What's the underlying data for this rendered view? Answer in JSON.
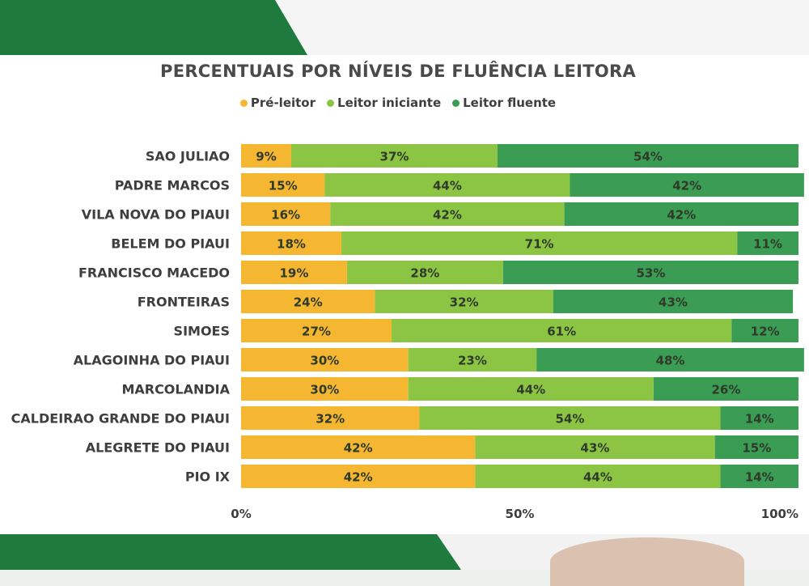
{
  "chart_data": {
    "type": "bar",
    "orientation": "horizontal",
    "stacked": true,
    "title": "PERCENTUAIS POR NÍVEIS DE FLUÊNCIA LEITORA",
    "categories": [
      "SAO JULIAO",
      "PADRE MARCOS",
      "VILA NOVA DO PIAUI",
      "BELEM DO PIAUI",
      "FRANCISCO MACEDO",
      "FRONTEIRAS",
      "SIMOES",
      "ALAGOINHA DO PIAUI",
      "MARCOLANDIA",
      "CALDEIRAO GRANDE DO PIAUI",
      "ALEGRETE DO PIAUI",
      "PIO IX"
    ],
    "series": [
      {
        "name": "Pré-leitor",
        "color": "#f5b731",
        "values": [
          9,
          15,
          16,
          18,
          19,
          24,
          27,
          30,
          30,
          32,
          42,
          42
        ]
      },
      {
        "name": "Leitor iniciante",
        "color": "#8cc544",
        "values": [
          37,
          44,
          42,
          71,
          28,
          32,
          61,
          23,
          44,
          54,
          43,
          44
        ]
      },
      {
        "name": "Leitor fluente",
        "color": "#3b9c54",
        "values": [
          54,
          42,
          42,
          11,
          53,
          43,
          12,
          48,
          26,
          14,
          15,
          14
        ]
      }
    ],
    "value_labels": [
      [
        "9%",
        "37%",
        "54%"
      ],
      [
        "15%",
        "44%",
        "42%"
      ],
      [
        "16%",
        "42%",
        "42%"
      ],
      [
        "18%",
        "71%",
        "11%"
      ],
      [
        "19%",
        "28%",
        "53%"
      ],
      [
        "24%",
        "32%",
        "43%"
      ],
      [
        "27%",
        "61%",
        "12%"
      ],
      [
        "30%",
        "23%",
        "48%"
      ],
      [
        "30%",
        "44%",
        "26%"
      ],
      [
        "32%",
        "54%",
        "14%"
      ],
      [
        "42%",
        "43%",
        "15%"
      ],
      [
        "42%",
        "44%",
        "14%"
      ]
    ],
    "xticks": [
      "0%",
      "50%",
      "100%"
    ],
    "xlim": [
      0,
      100
    ],
    "legend_position": "top"
  }
}
